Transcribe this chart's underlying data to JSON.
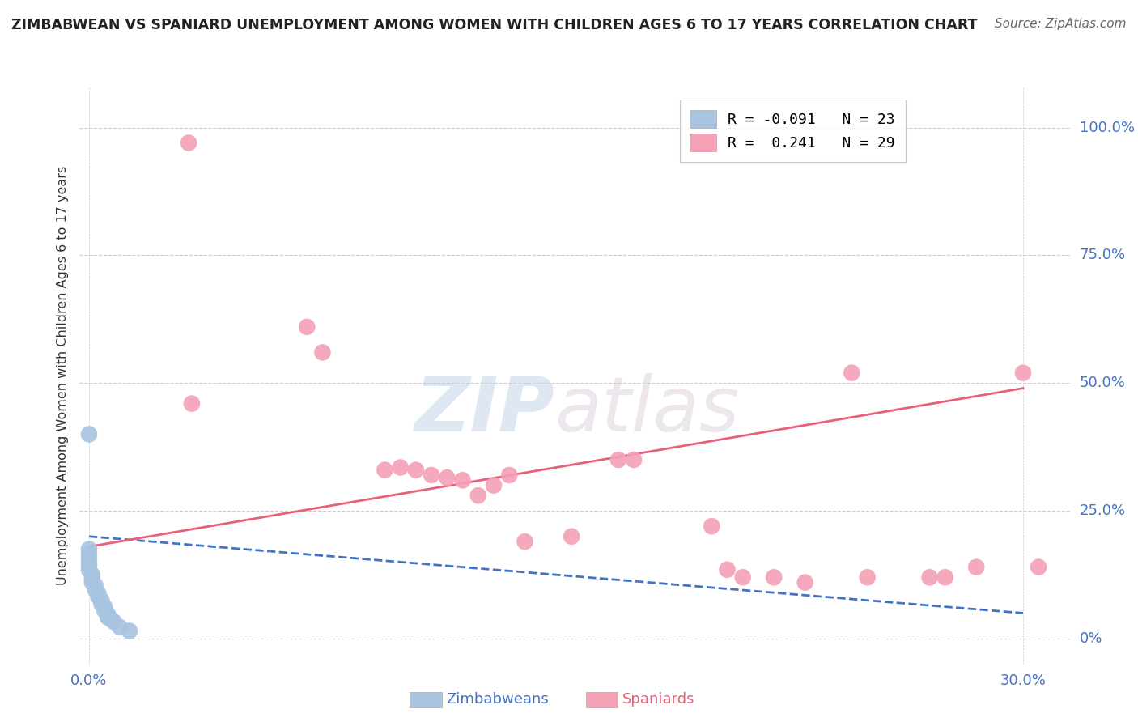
{
  "title": "ZIMBABWEAN VS SPANIARD UNEMPLOYMENT AMONG WOMEN WITH CHILDREN AGES 6 TO 17 YEARS CORRELATION CHART",
  "source": "Source: ZipAtlas.com",
  "ylabel": "Unemployment Among Women with Children Ages 6 to 17 years",
  "xlim": [
    -0.003,
    0.315
  ],
  "ylim": [
    -0.05,
    1.08
  ],
  "zimbabwean_color": "#a8c4e0",
  "spaniard_color": "#f4a0b5",
  "zimbabwean_line_color": "#4472c4",
  "spaniard_line_color": "#e8607a",
  "legend_R_zimbabwean": "-0.091",
  "legend_N_zimbabwean": "23",
  "legend_R_spaniard": "0.241",
  "legend_N_spaniard": "29",
  "watermark_zip": "ZIP",
  "watermark_atlas": "atlas",
  "zimbabwean_x": [
    0.0,
    0.0,
    0.0,
    0.0,
    0.0,
    0.0,
    0.001,
    0.001,
    0.001,
    0.002,
    0.002,
    0.003,
    0.003,
    0.004,
    0.004,
    0.005,
    0.005,
    0.006,
    0.006,
    0.007,
    0.008,
    0.01,
    0.013
  ],
  "zimbabwean_y": [
    0.4,
    0.175,
    0.165,
    0.155,
    0.145,
    0.135,
    0.125,
    0.118,
    0.11,
    0.104,
    0.096,
    0.088,
    0.082,
    0.075,
    0.068,
    0.062,
    0.055,
    0.048,
    0.042,
    0.038,
    0.033,
    0.022,
    0.015
  ],
  "spaniard_x": [
    0.032,
    0.033,
    0.07,
    0.075,
    0.095,
    0.1,
    0.105,
    0.11,
    0.115,
    0.12,
    0.125,
    0.13,
    0.135,
    0.14,
    0.155,
    0.17,
    0.175,
    0.2,
    0.205,
    0.21,
    0.22,
    0.23,
    0.245,
    0.25,
    0.27,
    0.275,
    0.285,
    0.3,
    0.305
  ],
  "spaniard_y": [
    0.97,
    0.46,
    0.61,
    0.56,
    0.33,
    0.335,
    0.33,
    0.32,
    0.315,
    0.31,
    0.28,
    0.3,
    0.32,
    0.19,
    0.2,
    0.35,
    0.35,
    0.22,
    0.135,
    0.12,
    0.12,
    0.11,
    0.52,
    0.12,
    0.12,
    0.12,
    0.14,
    0.52,
    0.14
  ],
  "zim_line_x": [
    0.0,
    0.3
  ],
  "zim_line_y": [
    0.2,
    0.05
  ],
  "span_line_x": [
    0.0,
    0.3
  ],
  "span_line_y": [
    0.18,
    0.49
  ]
}
